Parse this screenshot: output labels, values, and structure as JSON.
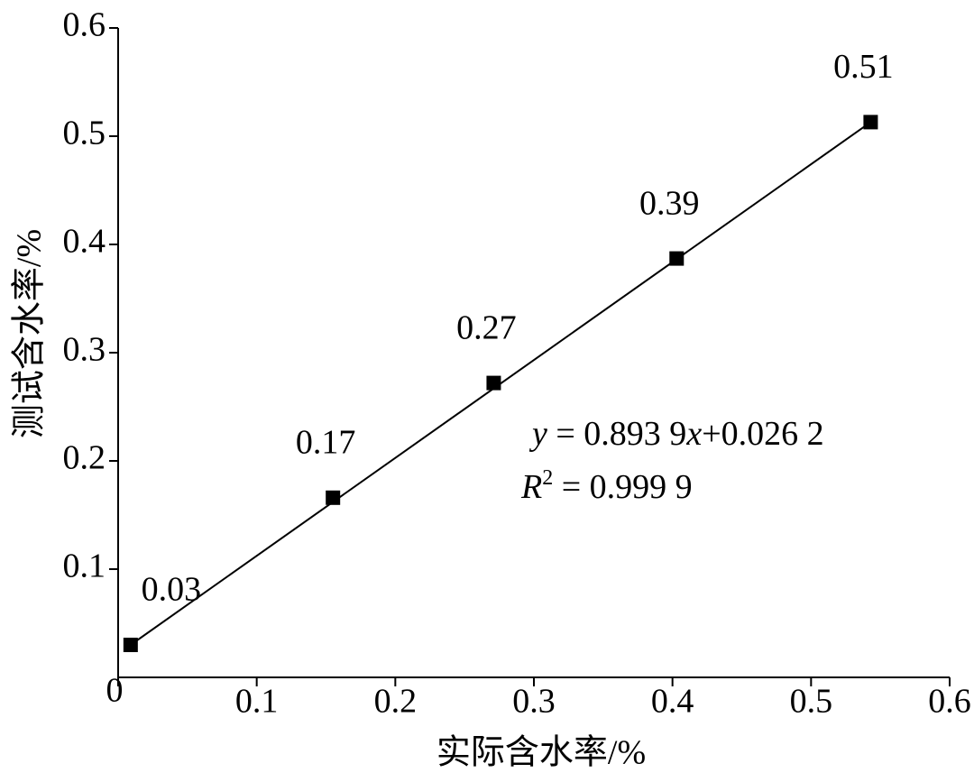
{
  "chart_data": {
    "type": "scatter",
    "x_label": "实际含水率/%",
    "y_label": "测试含水率/%",
    "series": [
      {
        "x": [
          0.009,
          0.155,
          0.271,
          0.403,
          0.543
        ],
        "values": [
          0.03,
          0.166,
          0.272,
          0.387,
          0.513
        ],
        "value_labels": [
          "0.03",
          "0.17",
          "0.27",
          "0.39",
          "0.51"
        ],
        "color": "#000000"
      }
    ],
    "equation": [
      "y",
      " = 0.893 9",
      "x",
      "+0.026 2"
    ],
    "r_squared": [
      "R",
      "2",
      " = 0.999 9"
    ],
    "xlim": [
      0,
      0.6
    ],
    "xticks": [
      0,
      0.1,
      0.2,
      0.3,
      0.4,
      0.5,
      0.6
    ],
    "ylim": [
      0,
      0.6
    ],
    "yticks": [
      0.1,
      0.2,
      0.3,
      0.4,
      0.5,
      0.6
    ]
  }
}
